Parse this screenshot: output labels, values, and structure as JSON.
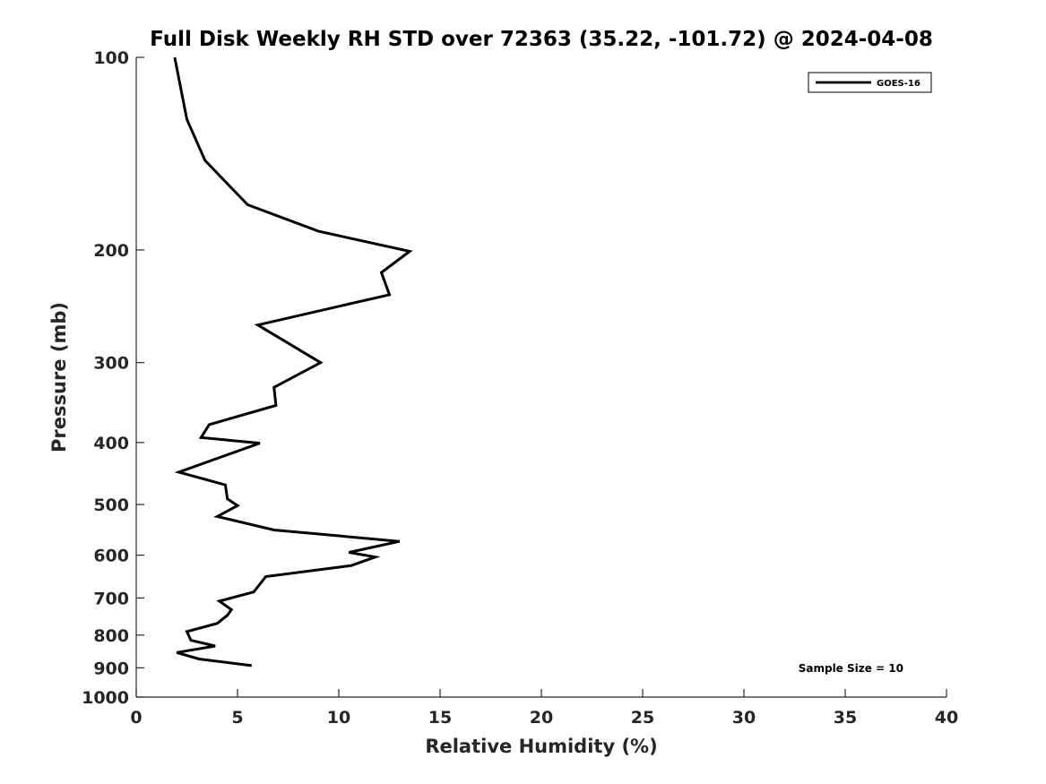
{
  "chart_data": {
    "type": "line",
    "title": "Full Disk Weekly RH STD over 72363 (35.22, -101.72) @ 2024-04-08",
    "xlabel": "Relative Humidity (%)",
    "ylabel": "Pressure (mb)",
    "xlim": [
      0,
      40
    ],
    "ylim": [
      1000,
      100
    ],
    "y_scale": "log",
    "y_inverted": true,
    "x_ticks": [
      0,
      5,
      10,
      15,
      20,
      25,
      30,
      35,
      40
    ],
    "x_tick_labels": [
      "0",
      "5",
      "10",
      "15",
      "20",
      "25",
      "30",
      "35",
      "40"
    ],
    "y_ticks": [
      100,
      200,
      300,
      400,
      500,
      600,
      700,
      800,
      900,
      1000
    ],
    "y_tick_labels": [
      "100",
      "200",
      "300",
      "400",
      "500",
      "600",
      "700",
      "800",
      "900",
      "1000"
    ],
    "grid": false,
    "legend_position": "top-right",
    "annotation": "Sample Size = 10",
    "series": [
      {
        "name": "GOES-16",
        "color": "#000000",
        "points": [
          {
            "x": 1.9,
            "y": 100
          },
          {
            "x": 2.5,
            "y": 125
          },
          {
            "x": 3.4,
            "y": 145
          },
          {
            "x": 5.5,
            "y": 170
          },
          {
            "x": 9.0,
            "y": 187
          },
          {
            "x": 13.5,
            "y": 201
          },
          {
            "x": 12.1,
            "y": 217
          },
          {
            "x": 12.5,
            "y": 235
          },
          {
            "x": 6.0,
            "y": 262
          },
          {
            "x": 9.1,
            "y": 300
          },
          {
            "x": 6.8,
            "y": 328
          },
          {
            "x": 6.9,
            "y": 350
          },
          {
            "x": 3.6,
            "y": 375
          },
          {
            "x": 3.2,
            "y": 393
          },
          {
            "x": 6.1,
            "y": 401
          },
          {
            "x": 2.1,
            "y": 445
          },
          {
            "x": 4.4,
            "y": 466
          },
          {
            "x": 4.5,
            "y": 490
          },
          {
            "x": 5.0,
            "y": 502
          },
          {
            "x": 4.0,
            "y": 522
          },
          {
            "x": 6.8,
            "y": 548
          },
          {
            "x": 13.0,
            "y": 571
          },
          {
            "x": 10.5,
            "y": 594
          },
          {
            "x": 11.8,
            "y": 604
          },
          {
            "x": 10.6,
            "y": 623
          },
          {
            "x": 6.4,
            "y": 648
          },
          {
            "x": 5.8,
            "y": 685
          },
          {
            "x": 4.1,
            "y": 708
          },
          {
            "x": 4.7,
            "y": 730
          },
          {
            "x": 4.5,
            "y": 745
          },
          {
            "x": 4.0,
            "y": 767
          },
          {
            "x": 2.5,
            "y": 790
          },
          {
            "x": 2.7,
            "y": 815
          },
          {
            "x": 3.9,
            "y": 832
          },
          {
            "x": 2.0,
            "y": 852
          },
          {
            "x": 3.1,
            "y": 872
          },
          {
            "x": 5.7,
            "y": 893
          }
        ]
      }
    ]
  }
}
